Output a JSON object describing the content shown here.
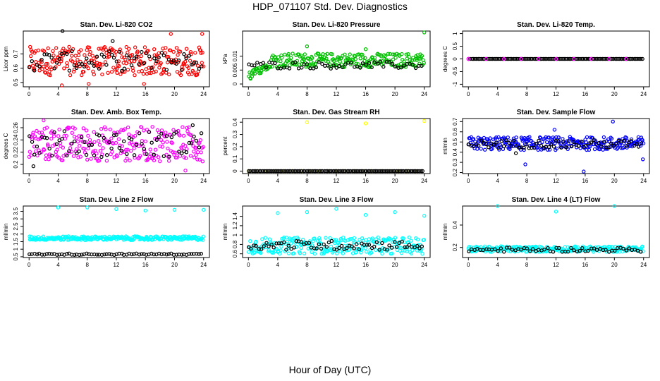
{
  "page": {
    "title": "HDP_071107  Std. Dev. Diagnostics",
    "x_caption": "Hour of Day (UTC)"
  },
  "chart_data": [
    {
      "type": "scatter",
      "title": "Stan. Dev. Li-820 CO2",
      "ylabel": "Licor ppm",
      "xlim": [
        -0.8,
        24.8
      ],
      "ylim": [
        0.47,
        0.86
      ],
      "x_ticks": [
        0,
        4,
        8,
        12,
        16,
        20,
        24
      ],
      "y_ticks": [
        0.5,
        0.6,
        0.7
      ],
      "series": [
        {
          "color": "#ff0000",
          "band": [
            0.55,
            0.75
          ],
          "n": 260,
          "outliers": [
            [
              4.5,
              0.48
            ],
            [
              8.2,
              0.49
            ],
            [
              15.8,
              0.49
            ],
            [
              23.8,
              0.84
            ],
            [
              19.5,
              0.84
            ]
          ]
        },
        {
          "color": "#000000",
          "band": [
            0.58,
            0.72
          ],
          "n": 70,
          "outliers": [
            [
              4.6,
              0.86
            ],
            [
              11.5,
              0.79
            ]
          ]
        }
      ]
    },
    {
      "type": "scatter",
      "title": "Stan. Dev. Li-820 Pressure",
      "ylabel": "kPa",
      "xlim": [
        -0.8,
        24.8
      ],
      "ylim": [
        -0.001,
        0.019
      ],
      "x_ticks": [
        0,
        4,
        8,
        12,
        16,
        20,
        24
      ],
      "y_ticks": [
        0.0,
        0.005,
        0.01
      ],
      "series": [
        {
          "color": "#00c000",
          "band": [
            0.006,
            0.011
          ],
          "n": 260,
          "early": true,
          "outliers": [
            [
              8,
              0.0135
            ],
            [
              16,
              0.0125
            ],
            [
              24,
              0.0185
            ]
          ]
        },
        {
          "color": "#000000",
          "band": [
            0.0055,
            0.008
          ],
          "n": 60,
          "outliers": []
        }
      ]
    },
    {
      "type": "scatter",
      "title": "Stan. Dev. Li-820 Temp.",
      "ylabel": "degrees C",
      "xlim": [
        -0.8,
        24.8
      ],
      "ylim": [
        -1.1,
        1.1
      ],
      "x_ticks": [
        0,
        4,
        8,
        12,
        16,
        20,
        24
      ],
      "y_ticks": [
        -1.0,
        -0.5,
        0.0,
        0.5,
        1.0
      ],
      "series": [
        {
          "color": "#000000",
          "band": [
            0.0,
            0.0
          ],
          "n": 110,
          "outliers": []
        },
        {
          "color": "#ff00ff",
          "band": [
            0.0,
            0.0
          ],
          "n": 10,
          "outliers": [
            [
              0.0,
              0.0
            ]
          ]
        }
      ]
    },
    {
      "type": "scatter",
      "title": "Stan. Dev. Amb. Box Temp.",
      "ylabel": "degrees C",
      "xlim": [
        -0.8,
        24.8
      ],
      "ylim": [
        0.185,
        0.275
      ],
      "x_ticks": [
        0,
        4,
        8,
        12,
        16,
        20,
        24
      ],
      "y_ticks": [
        0.2,
        0.22,
        0.24,
        0.26
      ],
      "series": [
        {
          "color": "#ff00ff",
          "band": [
            0.205,
            0.262
          ],
          "n": 260,
          "outliers": [
            [
              2.0,
              0.272
            ],
            [
              21.5,
              0.19
            ]
          ]
        },
        {
          "color": "#000000",
          "band": [
            0.212,
            0.255
          ],
          "n": 70,
          "outliers": [
            [
              0.6,
              0.197
            ],
            [
              22.5,
              0.264
            ]
          ]
        }
      ]
    },
    {
      "type": "scatter",
      "title": "Stan. Dev. Gas Stream RH",
      "ylabel": "percent",
      "xlim": [
        -0.8,
        24.8
      ],
      "ylim": [
        -0.02,
        0.43
      ],
      "x_ticks": [
        0,
        4,
        8,
        12,
        16,
        20,
        24
      ],
      "y_ticks": [
        0.0,
        0.1,
        0.2,
        0.3,
        0.4
      ],
      "series": [
        {
          "color": "#ffff00",
          "band": [
            0.0,
            0.0
          ],
          "n": 20,
          "outliers": [
            [
              8,
              0.4
            ],
            [
              16,
              0.39
            ],
            [
              24,
              0.41
            ]
          ]
        },
        {
          "color": "#000000",
          "band": [
            0.0,
            0.0
          ],
          "n": 100,
          "outliers": []
        }
      ]
    },
    {
      "type": "scatter",
      "title": "Stan. Dev. Sample Flow",
      "ylabel": "ml/min",
      "xlim": [
        -0.8,
        24.8
      ],
      "ylim": [
        0.19,
        0.73
      ],
      "x_ticks": [
        0,
        4,
        8,
        12,
        16,
        20,
        24
      ],
      "y_ticks": [
        0.2,
        0.3,
        0.4,
        0.5,
        0.6,
        0.7
      ],
      "series": [
        {
          "color": "#0000ff",
          "band": [
            0.42,
            0.55
          ],
          "n": 260,
          "outliers": [
            [
              7.8,
              0.28
            ],
            [
              15.8,
              0.21
            ],
            [
              19.8,
              0.7
            ],
            [
              23.9,
              0.33
            ],
            [
              11.8,
              0.62
            ]
          ]
        },
        {
          "color": "#000000",
          "band": [
            0.44,
            0.52
          ],
          "n": 70,
          "outliers": [
            [
              6.5,
              0.39
            ]
          ]
        }
      ]
    },
    {
      "type": "scatter",
      "title": "Stan. Dev. Line 2 Flow",
      "ylabel": "ml/min",
      "xlim": [
        -0.8,
        24.8
      ],
      "ylim": [
        0.45,
        3.85
      ],
      "x_ticks": [
        0,
        4,
        8,
        12,
        16,
        20,
        24
      ],
      "y_ticks": [
        0.5,
        1.0,
        1.5,
        2.0,
        2.5,
        3.0,
        3.5
      ],
      "series": [
        {
          "color": "#00ffff",
          "band": [
            1.6,
            1.85
          ],
          "n": 260,
          "outliers": [
            [
              4,
              3.75
            ],
            [
              8,
              3.75
            ],
            [
              12,
              3.65
            ],
            [
              16,
              3.55
            ],
            [
              20,
              3.6
            ],
            [
              24,
              3.6
            ]
          ]
        },
        {
          "color": "#000000",
          "band": [
            0.62,
            0.72
          ],
          "n": 70,
          "outliers": []
        }
      ]
    },
    {
      "type": "scatter",
      "title": "Stan. Dev. Line 3 Flow",
      "ylabel": "ml/min",
      "xlim": [
        -0.8,
        24.8
      ],
      "ylim": [
        0.52,
        1.62
      ],
      "x_ticks": [
        0,
        4,
        8,
        12,
        16,
        20,
        24
      ],
      "y_ticks": [
        0.6,
        0.8,
        1.0,
        1.2,
        1.4
      ],
      "series": [
        {
          "color": "#00ffff",
          "band": [
            0.6,
            0.95
          ],
          "n": 260,
          "outliers": [
            [
              4,
              1.47
            ],
            [
              8,
              1.49
            ],
            [
              12,
              1.56
            ],
            [
              16,
              1.43
            ],
            [
              20,
              1.49
            ],
            [
              24,
              1.41
            ]
          ]
        },
        {
          "color": "#000000",
          "band": [
            0.68,
            0.88
          ],
          "n": 70,
          "outliers": []
        }
      ]
    },
    {
      "type": "scatter",
      "title": "Stan. Dev. Line 4 (LT) Flow",
      "ylabel": "ml/min",
      "xlim": [
        -0.8,
        24.8
      ],
      "ylim": [
        0.11,
        0.57
      ],
      "x_ticks": [
        0,
        4,
        8,
        12,
        16,
        20,
        24
      ],
      "y_ticks": [
        0.2,
        0.4
      ],
      "series": [
        {
          "color": "#00ffff",
          "band": [
            0.16,
            0.21
          ],
          "n": 260,
          "outliers": [
            [
              4,
              0.57
            ],
            [
              12,
              0.52
            ],
            [
              20,
              0.57
            ]
          ]
        },
        {
          "color": "#000000",
          "band": [
            0.16,
            0.2
          ],
          "n": 60,
          "outliers": []
        }
      ]
    }
  ]
}
